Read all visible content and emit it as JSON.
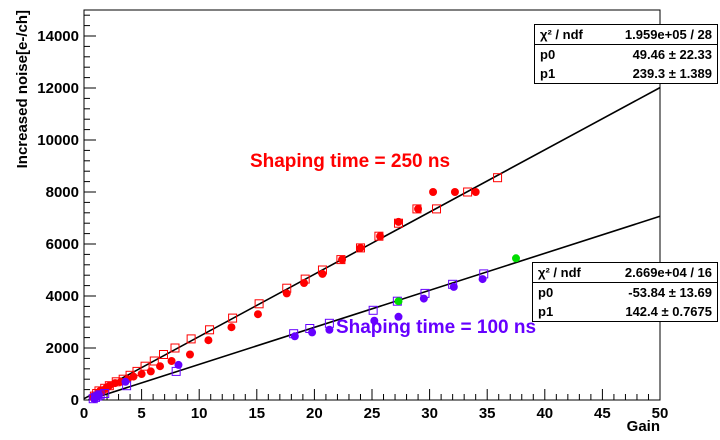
{
  "chart_data": {
    "type": "scatter",
    "xlabel": "Gain",
    "ylabel": "Increased noise[e-/ch]",
    "xlim": [
      0,
      50
    ],
    "ylim": [
      0,
      15000
    ],
    "xticks": [
      0,
      5,
      10,
      15,
      20,
      25,
      30,
      35,
      40,
      45,
      50
    ],
    "xtick_labels": [
      "0",
      "5",
      "10",
      "15",
      "20",
      "25",
      "30",
      "35",
      "40",
      "45",
      "50"
    ],
    "yticks": [
      0,
      2000,
      4000,
      6000,
      8000,
      10000,
      12000,
      14000
    ],
    "ytick_labels": [
      "0",
      "2000",
      "4000",
      "6000",
      "8000",
      "10000",
      "12000",
      "14000"
    ],
    "grid": false,
    "colors": {
      "red": "#ff0000",
      "purple": "#6600ff",
      "green": "#00dd00",
      "line": "#000000"
    },
    "annotations": [
      {
        "text": "Shaping time = 250 ns",
        "x": 22.5,
        "y": 9100,
        "color": "#ff0000"
      },
      {
        "text": "Shaping time = 100 ns",
        "x": 30.5,
        "y": 1750,
        "color": "#6600ff"
      }
    ],
    "series": [
      {
        "marker": "filled-circle",
        "color": "#ff0000",
        "x": [
          0.8,
          1.0,
          1.2,
          1.4,
          1.6,
          1.9,
          2.2,
          2.7,
          3.2,
          3.8,
          4.3,
          5.0,
          5.8,
          6.6,
          7.6,
          9.2,
          10.8,
          12.8,
          15.1,
          17.6,
          19.1,
          20.7,
          22.4,
          24.0,
          25.7,
          27.3,
          29.0,
          30.3,
          32.2,
          34.0
        ],
        "y": [
          100,
          150,
          250,
          350,
          350,
          450,
          550,
          650,
          700,
          800,
          900,
          1000,
          1100,
          1300,
          1500,
          1750,
          2300,
          2800,
          3300,
          4100,
          4500,
          4850,
          5400,
          5850,
          6300,
          6850,
          7350,
          8000,
          8000,
          8000
        ]
      },
      {
        "marker": "open-square",
        "color": "#ff0000",
        "x": [
          0.9,
          1.1,
          1.3,
          1.8,
          2.2,
          2.8,
          3.4,
          4.0,
          4.6,
          5.3,
          6.1,
          6.9,
          7.9,
          9.3,
          10.9,
          12.9,
          15.2,
          17.6,
          19.2,
          20.7,
          22.3,
          24.0,
          25.6,
          27.3,
          28.9,
          30.6,
          33.3,
          35.9
        ],
        "y": [
          150,
          250,
          350,
          450,
          550,
          700,
          800,
          950,
          1100,
          1300,
          1500,
          1750,
          2000,
          2350,
          2700,
          3150,
          3700,
          4300,
          4650,
          5000,
          5400,
          5850,
          6300,
          6800,
          7350,
          7350,
          8000,
          8550
        ]
      },
      {
        "marker": "filled-circle",
        "color": "#6600ff",
        "x": [
          0.9,
          1.0,
          1.1,
          1.3,
          3.6,
          8.2,
          18.3,
          19.8,
          21.3,
          25.2,
          27.3,
          29.5,
          32.1,
          34.6
        ],
        "y": [
          50,
          100,
          150,
          200,
          700,
          1350,
          2450,
          2600,
          2700,
          3050,
          3200,
          3900,
          4350,
          4650
        ]
      },
      {
        "marker": "open-square",
        "color": "#6600ff",
        "x": [
          0.8,
          1.0,
          1.2,
          1.4,
          1.8,
          3.7,
          8.0,
          18.2,
          19.6,
          21.3,
          25.1,
          27.2,
          29.6,
          32.0,
          34.7
        ],
        "y": [
          50,
          100,
          150,
          200,
          250,
          550,
          1100,
          2550,
          2750,
          2950,
          3450,
          3800,
          4100,
          4450,
          4850
        ]
      },
      {
        "marker": "filled-circle",
        "color": "#00dd00",
        "x": [
          27.3,
          37.5
        ],
        "y": [
          3800,
          5450
        ]
      }
    ],
    "fits": [
      {
        "p0": 49.46,
        "p1": 239.3,
        "x_range": [
          0,
          50
        ],
        "color": "#000000"
      },
      {
        "p0": -53.84,
        "p1": 142.4,
        "x_range": [
          0,
          50
        ],
        "color": "#000000"
      }
    ],
    "stats": [
      {
        "rows": [
          [
            "χ² / ndf",
            "1.959e+05 / 28"
          ],
          [
            "p0",
            "49.46 ± 22.33"
          ],
          [
            "p1",
            "239.3 ± 1.389"
          ]
        ]
      },
      {
        "rows": [
          [
            "χ² / ndf",
            "2.669e+04 / 16"
          ],
          [
            "p0",
            "-53.84 ± 13.69"
          ],
          [
            "p1",
            "142.4 ± 0.7675"
          ]
        ]
      }
    ]
  }
}
